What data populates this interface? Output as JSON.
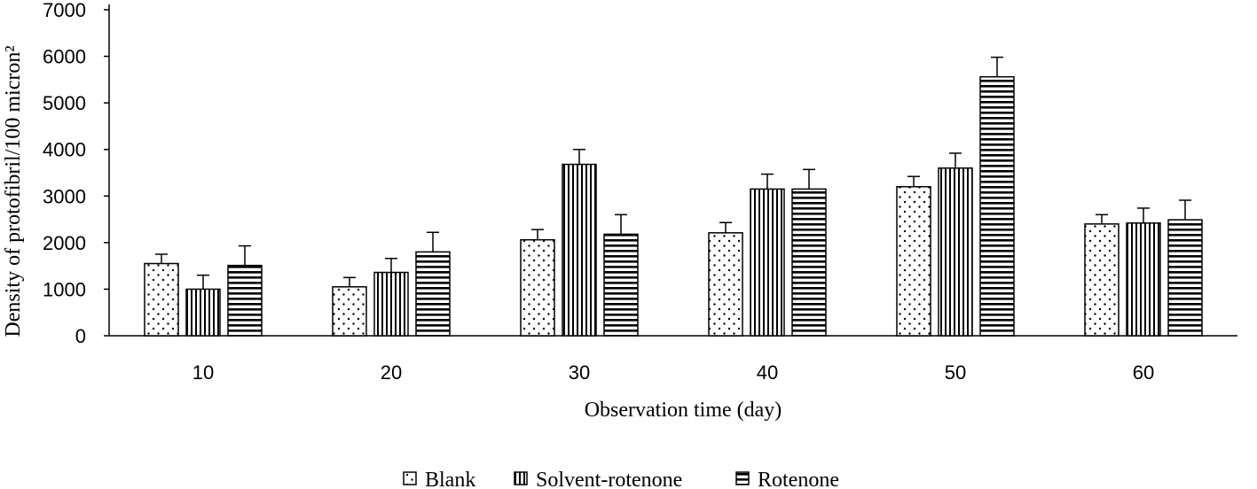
{
  "chart_data": {
    "type": "bar",
    "title": "",
    "xlabel": "Observation time (day)",
    "ylabel": "Density of  protofibril/100 micron²",
    "categories": [
      "10",
      "20",
      "30",
      "40",
      "50",
      "60"
    ],
    "ylim": [
      0,
      7000
    ],
    "yticks": [
      0,
      1000,
      2000,
      3000,
      4000,
      5000,
      6000,
      7000
    ],
    "grid": false,
    "legend_position": "bottom-center",
    "series": [
      {
        "name": "Blank",
        "pattern": "dots",
        "values": [
          1550,
          1050,
          2060,
          2210,
          3200,
          2400
        ],
        "errors": [
          200,
          200,
          220,
          220,
          220,
          200
        ]
      },
      {
        "name": "Solvent-rotenone",
        "pattern": "vertical-lines",
        "values": [
          1000,
          1360,
          3680,
          3150,
          3600,
          2420
        ],
        "errors": [
          300,
          300,
          320,
          320,
          320,
          320
        ]
      },
      {
        "name": "Rotenone",
        "pattern": "horizontal-lines",
        "values": [
          1510,
          1800,
          2180,
          3150,
          5560,
          2490
        ],
        "errors": [
          420,
          420,
          420,
          420,
          420,
          420
        ]
      }
    ]
  }
}
